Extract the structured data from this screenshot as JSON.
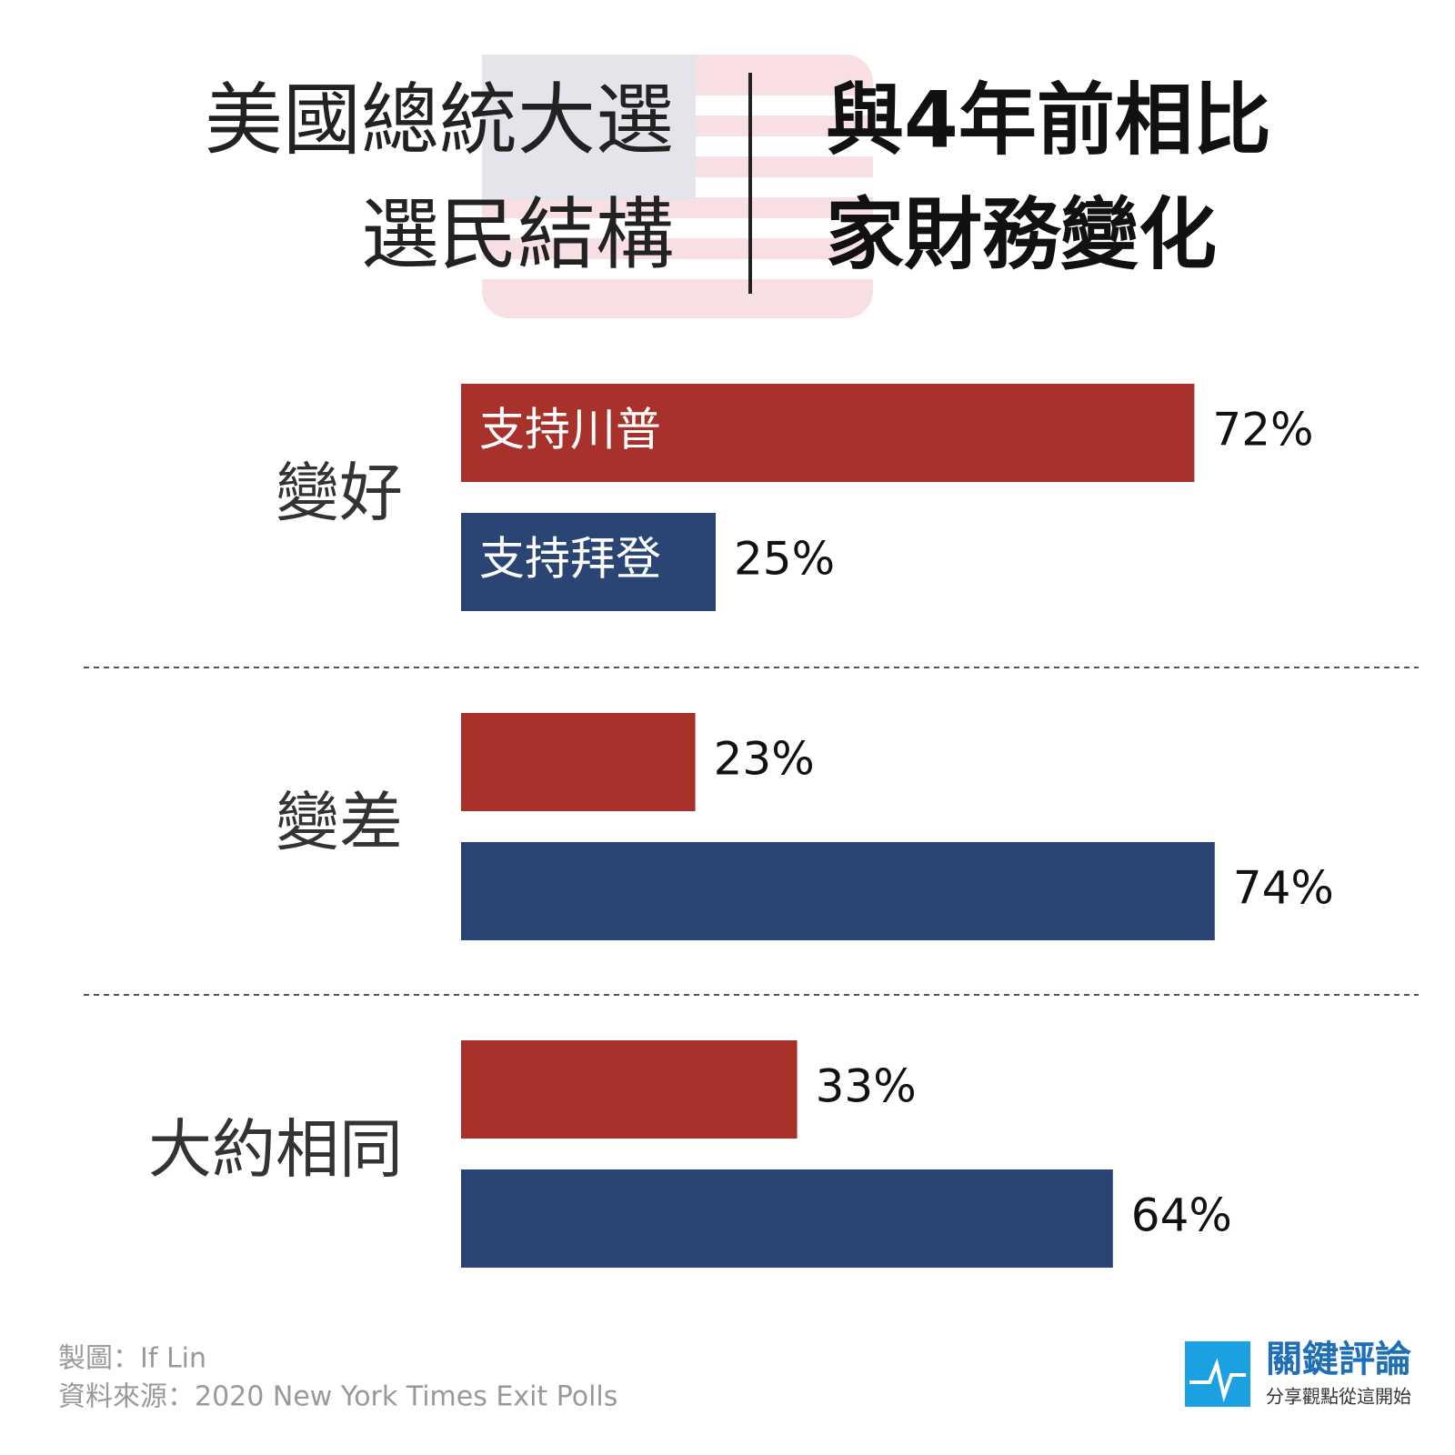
{
  "chart_data": {
    "type": "bar",
    "orientation": "horizontal",
    "title_left": [
      "美國總統大選",
      "選民結構"
    ],
    "title_right": [
      "與4年前相比",
      "家財務變化"
    ],
    "categories": [
      "變好",
      "變差",
      "大約相同"
    ],
    "series": [
      {
        "name": "支持川普",
        "color": "#a8312b",
        "values": [
          72,
          23,
          33
        ],
        "value_labels": [
          "72%",
          "23%",
          "33%"
        ]
      },
      {
        "name": "支持拜登",
        "color": "#2a4473",
        "values": [
          25,
          74,
          64
        ],
        "value_labels": [
          "25%",
          "74%",
          "64%"
        ]
      }
    ]
  },
  "footer": {
    "credit": "製圖：If Lin",
    "source": "資料來源：2020 New York Times Exit Polls"
  },
  "logo": {
    "name": "關鍵評論",
    "slogan": "分享觀點從這開始"
  }
}
